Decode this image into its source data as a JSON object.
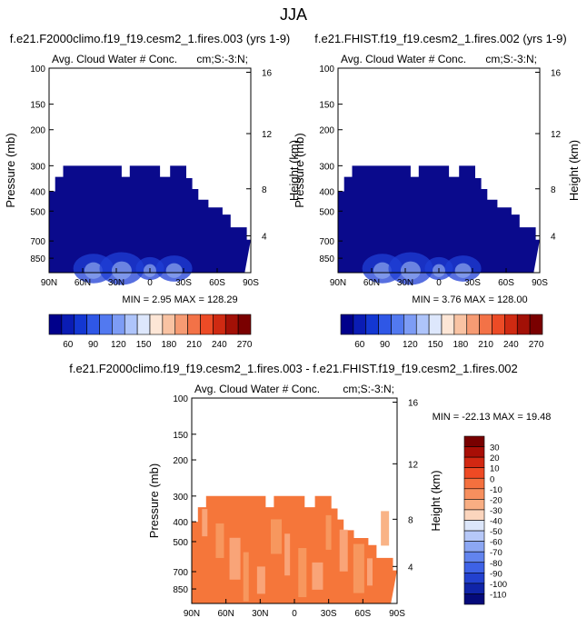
{
  "page_title": "JJA",
  "colors": {
    "dark_navy": "#0a0a8c",
    "mid_blue": "#1f3fd6",
    "light_blue": "#8fa8ee",
    "orange": "#f5763a",
    "light_orange": "#f7a068",
    "pale_orange": "#fab088"
  },
  "panels": [
    {
      "title": "f.e21.F2000climo.f19_f19.cesm2_1.fires.003 (yrs 1-9)",
      "left_label": "Avg. Cloud Water # Conc.",
      "right_label": "cm;S:-3:N;",
      "stats": "MIN =   2.95  MAX = 128.29"
    },
    {
      "title": "f.e21.FHIST.f19_f19.cesm2_1.fires.002 (yrs 1-9)",
      "left_label": "Avg. Cloud Water # Conc.",
      "right_label": "cm;S:-3:N;",
      "stats": "MIN =   3.76  MAX = 128.00"
    },
    {
      "title": "f.e21.F2000climo.f19_f19.cesm2_1.fires.003 - f.e21.FHIST.f19_f19.cesm2_1.fires.002",
      "left_label": "Avg. Cloud Water # Conc.",
      "right_label": "cm;S:-3:N;",
      "stats": "MIN = -22.13  MAX =  19.48"
    }
  ],
  "chart_data": [
    {
      "type": "heatmap",
      "title": "f.e21.F2000climo.f19_f19.cesm2_1.fires.003 (yrs 1-9)",
      "ylabel": "Pressure (mb)",
      "y2label": "Height (km)",
      "x_ticks": [
        "90N",
        "60N",
        "30N",
        "0",
        "30S",
        "60S",
        "90S"
      ],
      "y_ticks": [
        "100",
        "150",
        "200",
        "300",
        "400",
        "500",
        "700",
        "850"
      ],
      "y2_ticks": [
        "16",
        "12",
        "8",
        "4"
      ],
      "min": 2.95,
      "max": 128.29,
      "colorbar_labels": [
        "60",
        "90",
        "120",
        "150",
        "180",
        "210",
        "240",
        "270"
      ]
    },
    {
      "type": "heatmap",
      "title": "f.e21.FHIST.f19_f19.cesm2_1.fires.002 (yrs 1-9)",
      "ylabel": "Pressure (mb)",
      "y2label": "Height (km)",
      "x_ticks": [
        "90N",
        "60N",
        "30N",
        "0",
        "30S",
        "60S",
        "90S"
      ],
      "y_ticks": [
        "100",
        "150",
        "200",
        "300",
        "400",
        "500",
        "700",
        "850"
      ],
      "y2_ticks": [
        "16",
        "12",
        "8",
        "4"
      ],
      "min": 3.76,
      "max": 128.0,
      "colorbar_labels": [
        "60",
        "90",
        "120",
        "150",
        "180",
        "210",
        "240",
        "270"
      ]
    },
    {
      "type": "heatmap",
      "title": "f.e21.F2000climo.f19_f19.cesm2_1.fires.003 - f.e21.FHIST.f19_f19.cesm2_1.fires.002",
      "ylabel": "Pressure (mb)",
      "y2label": "Height (km)",
      "x_ticks": [
        "90N",
        "60N",
        "30N",
        "0",
        "30S",
        "60S",
        "90S"
      ],
      "y_ticks": [
        "100",
        "150",
        "200",
        "300",
        "400",
        "500",
        "700",
        "850"
      ],
      "y2_ticks": [
        "16",
        "12",
        "8",
        "4"
      ],
      "min": -22.13,
      "max": 19.48,
      "colorbar_labels": [
        "30",
        "20",
        "10",
        "0",
        "-10",
        "-20",
        "-30",
        "-40",
        "-50",
        "-60",
        "-70",
        "-80",
        "-90",
        "-100",
        "-110"
      ]
    }
  ]
}
